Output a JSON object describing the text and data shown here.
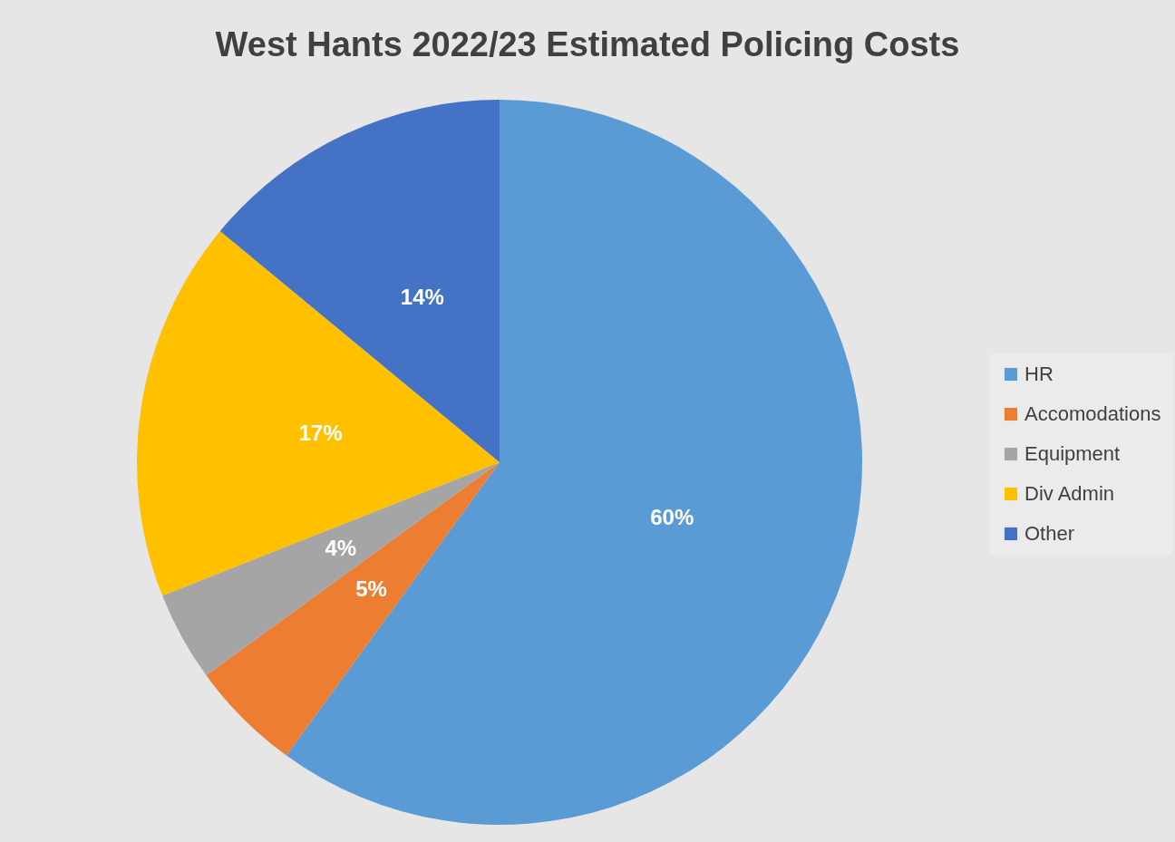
{
  "chart_data": {
    "type": "pie",
    "title": "West Hants 2022/23 Estimated Policing Costs",
    "categories": [
      "HR",
      "Accomodations",
      "Equipment",
      "Div Admin",
      "Other"
    ],
    "values": [
      60,
      5,
      4,
      17,
      14
    ],
    "value_labels": [
      "60%",
      "5%",
      "4%",
      "17%",
      "14%"
    ],
    "colors": [
      "#5b9bd5",
      "#ed7d31",
      "#a5a5a5",
      "#ffc000",
      "#4472c4"
    ],
    "legend": "right"
  }
}
